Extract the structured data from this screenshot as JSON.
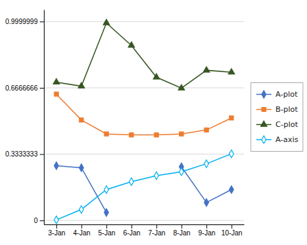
{
  "chart_data": {
    "type": "line",
    "categories": [
      "3-Jan",
      "4-Jan",
      "5-Jan",
      "6-Jan",
      "7-Jan",
      "8-Jan",
      "9-Jan",
      "10-Jan"
    ],
    "series": [
      {
        "name": "A-plot",
        "color": "#4472c4",
        "marker": "diamond",
        "values": [
          0.275,
          0.265,
          0.04,
          null,
          null,
          0.27,
          0.09,
          0.155
        ]
      },
      {
        "name": "B-plot",
        "color": "#ed7d31",
        "marker": "square",
        "values": [
          0.635,
          0.505,
          0.435,
          0.43,
          0.43,
          0.435,
          0.455,
          0.515
        ]
      },
      {
        "name": "C-plot",
        "color": "#375623",
        "marker": "triangle",
        "values": [
          0.695,
          0.675,
          0.993,
          0.88,
          0.72,
          0.665,
          0.755,
          0.745
        ]
      },
      {
        "name": "A-axis",
        "color": "#00b0f0",
        "marker": "diamond-open",
        "values": [
          0.003,
          0.055,
          0.155,
          0.195,
          0.225,
          0.245,
          0.285,
          0.335
        ]
      }
    ],
    "ylim": [
      -0.02,
      1.06
    ],
    "yticks": [
      0,
      0.3333333,
      0.6666666,
      0.9999999
    ],
    "grid": true,
    "legend": "right"
  }
}
